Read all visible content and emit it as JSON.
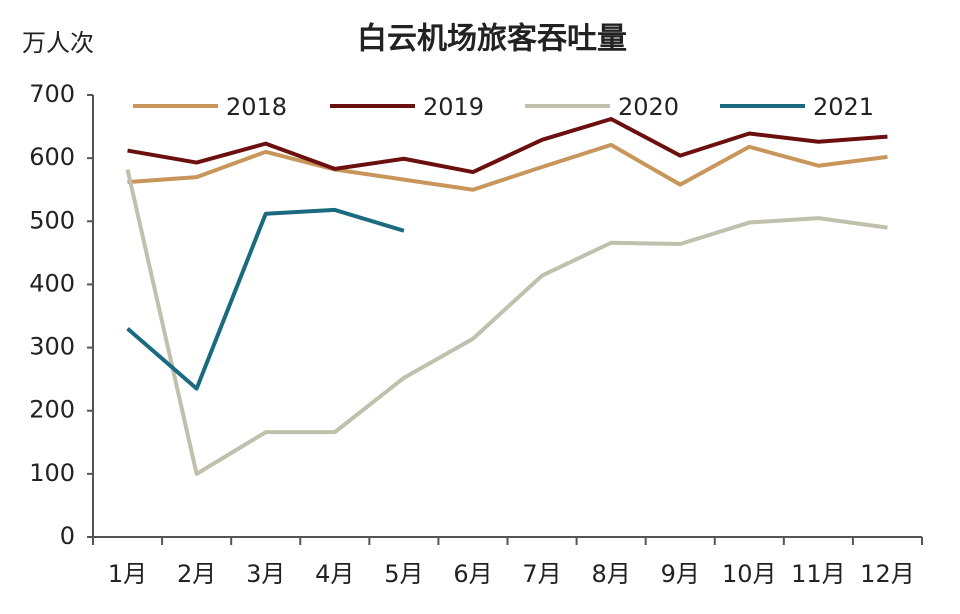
{
  "chart_data": {
    "type": "line",
    "title": "白云机场旅客吞吐量",
    "y_label": "万人次",
    "categories": [
      "1月",
      "2月",
      "3月",
      "4月",
      "5月",
      "6月",
      "7月",
      "8月",
      "9月",
      "10月",
      "11月",
      "12月"
    ],
    "series": [
      {
        "name": "2018",
        "color": "#c8955a",
        "values": [
          562,
          570,
          610,
          582,
          566,
          550,
          586,
          621,
          558,
          618,
          588,
          602
        ]
      },
      {
        "name": "2019",
        "color": "#6b0f0f",
        "values": [
          612,
          593,
          623,
          583,
          599,
          578,
          629,
          662,
          604,
          639,
          626,
          634
        ]
      },
      {
        "name": "2020",
        "color": "#c0c0ad",
        "values": [
          582,
          100,
          166,
          166,
          252,
          314,
          414,
          466,
          464,
          498,
          505,
          490
        ]
      },
      {
        "name": "2021",
        "color": "#1a6a80",
        "values": [
          330,
          235,
          512,
          518,
          485,
          null,
          null,
          null,
          null,
          null,
          null,
          null
        ]
      }
    ],
    "ylim": [
      0,
      700
    ],
    "yticks": [
      0,
      100,
      200,
      300,
      400,
      500,
      600,
      700
    ],
    "grid": false,
    "legend": "top"
  }
}
